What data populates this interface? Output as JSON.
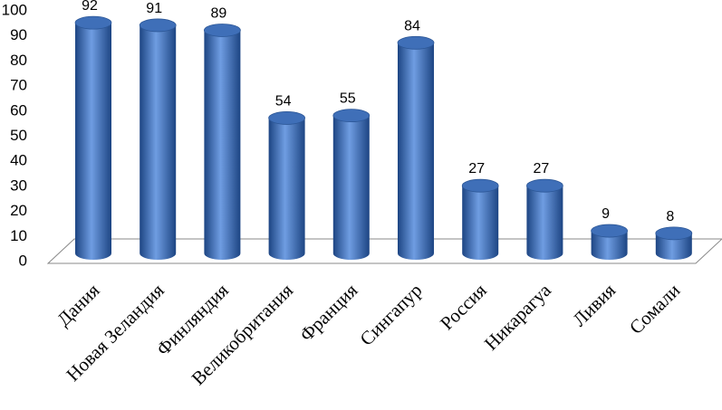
{
  "chart_data": {
    "type": "bar",
    "categories": [
      "Дания",
      "Новая Зеландия",
      "Финляндия",
      "Великобритания",
      "Франция",
      "Сингапур",
      "Россия",
      "Никарагуа",
      "Ливия",
      "Сомали"
    ],
    "values": [
      92,
      91,
      89,
      54,
      55,
      84,
      27,
      27,
      9,
      8
    ],
    "color": "#3f6fb8",
    "ylim": [
      0,
      100
    ],
    "yticks": [
      0,
      10,
      20,
      30,
      40,
      50,
      60,
      70,
      80,
      90,
      100
    ]
  }
}
